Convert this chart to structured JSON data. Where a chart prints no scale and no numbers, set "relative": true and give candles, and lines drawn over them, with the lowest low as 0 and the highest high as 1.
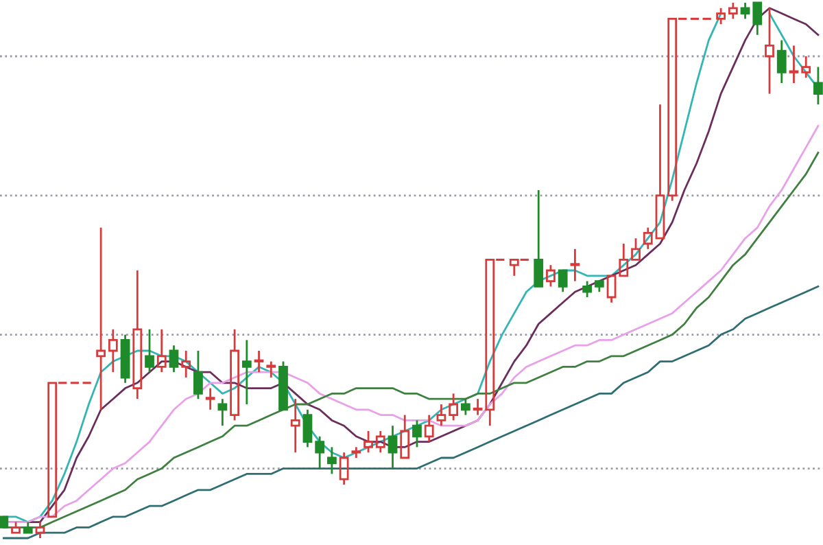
{
  "chart_data": {
    "type": "candlestick",
    "relative": true,
    "categories": [
      null,
      null,
      null,
      null,
      null,
      null,
      null,
      null,
      null,
      null,
      null,
      null,
      null,
      null,
      null,
      null,
      null,
      null,
      null,
      null,
      null,
      null,
      null,
      null,
      null,
      null,
      null,
      null,
      null,
      null,
      null,
      null,
      null,
      null,
      null,
      null,
      null,
      null,
      null,
      null,
      null,
      null,
      null,
      null,
      null,
      null,
      null,
      null,
      null,
      null,
      null,
      null,
      null,
      null,
      null,
      null,
      null,
      null,
      null,
      null,
      null,
      null,
      null,
      null,
      null,
      null,
      null,
      null
    ],
    "ohlc": [
      [
        0.04,
        0.04,
        0.02,
        0.02
      ],
      [
        0.01,
        0.03,
        0.01,
        0.02
      ],
      [
        0.02,
        0.03,
        0.01,
        0.01
      ],
      [
        0.01,
        0.03,
        0,
        0.02
      ],
      [
        0.04,
        0.29,
        0.04,
        0.29
      ],
      [
        0.29,
        0.29,
        0.29,
        0.29
      ],
      [
        0.29,
        0.29,
        0.29,
        0.29
      ],
      [
        0.29,
        0.29,
        0.29,
        0.29
      ],
      [
        0.34,
        0.58,
        0.24,
        0.35
      ],
      [
        0.35,
        0.39,
        0.31,
        0.37
      ],
      [
        0.37,
        0.38,
        0.29,
        0.3
      ],
      [
        0.28,
        0.5,
        0.26,
        0.39
      ],
      [
        0.34,
        0.39,
        0.31,
        0.32
      ],
      [
        0.32,
        0.39,
        0.31,
        0.34
      ],
      [
        0.35,
        0.36,
        0.31,
        0.32
      ],
      [
        0.32,
        0.35,
        0.3,
        0.33
      ],
      [
        0.31,
        0.35,
        0.26,
        0.27
      ],
      [
        0.26,
        0.28,
        0.24,
        0.26
      ],
      [
        0.25,
        0.26,
        0.21,
        0.24
      ],
      [
        0.23,
        0.39,
        0.22,
        0.35
      ],
      [
        0.33,
        0.37,
        0.25,
        0.32
      ],
      [
        0.33,
        0.35,
        0.31,
        0.33
      ],
      [
        0.32,
        0.33,
        0.3,
        0.32
      ],
      [
        0.32,
        0.33,
        0.24,
        0.24
      ],
      [
        0.21,
        0.26,
        0.16,
        0.22
      ],
      [
        0.23,
        0.24,
        0.17,
        0.18
      ],
      [
        0.18,
        0.19,
        0.13,
        0.16
      ],
      [
        0.15,
        0.17,
        0.12,
        0.14
      ],
      [
        0.11,
        0.16,
        0.1,
        0.15
      ],
      [
        0.16,
        0.17,
        0.15,
        0.16
      ],
      [
        0.17,
        0.2,
        0.16,
        0.18
      ],
      [
        0.17,
        0.2,
        0.16,
        0.19
      ],
      [
        0.19,
        0.21,
        0.13,
        0.16
      ],
      [
        0.15,
        0.23,
        0.15,
        0.2
      ],
      [
        0.21,
        0.22,
        0.17,
        0.19
      ],
      [
        0.19,
        0.23,
        0.18,
        0.21
      ],
      [
        0.22,
        0.25,
        0.21,
        0.23
      ],
      [
        0.23,
        0.27,
        0.22,
        0.25
      ],
      [
        0.25,
        0.26,
        0.23,
        0.24
      ],
      [
        0.24,
        0.26,
        0.23,
        0.24
      ],
      [
        0.24,
        0.52,
        0.21,
        0.52
      ],
      [
        0.52,
        0.52,
        0.52,
        0.52
      ],
      [
        0.51,
        0.52,
        0.49,
        0.52
      ],
      [
        0.52,
        0.52,
        0.52,
        0.52
      ],
      [
        0.52,
        0.65,
        0.47,
        0.47
      ],
      [
        0.48,
        0.51,
        0.47,
        0.5
      ],
      [
        0.5,
        0.5,
        0.46,
        0.47
      ],
      [
        0.51,
        0.54,
        0.48,
        0.51
      ],
      [
        0.47,
        0.48,
        0.45,
        0.46
      ],
      [
        0.48,
        0.48,
        0.46,
        0.47
      ],
      [
        0.45,
        0.49,
        0.44,
        0.49
      ],
      [
        0.49,
        0.55,
        0.49,
        0.52
      ],
      [
        0.52,
        0.56,
        0.52,
        0.54
      ],
      [
        0.55,
        0.58,
        0.54,
        0.57
      ],
      [
        0.56,
        0.81,
        0.56,
        0.64
      ],
      [
        0.64,
        0.97,
        0.63,
        0.97
      ],
      [
        0.97,
        0.97,
        0.97,
        0.97
      ],
      [
        0.97,
        0.97,
        0.97,
        0.97
      ],
      [
        0.97,
        0.97,
        0.97,
        0.97
      ],
      [
        0.97,
        0.99,
        0.96,
        0.98
      ],
      [
        0.98,
        1,
        0.97,
        0.99
      ],
      [
        0.99,
        1,
        0.97,
        0.98
      ],
      [
        1,
        1,
        0.94,
        0.96
      ],
      [
        0.9,
        0.99,
        0.83,
        0.92
      ],
      [
        0.91,
        0.93,
        0.85,
        0.87
      ],
      [
        0.87,
        0.92,
        0.85,
        0.87
      ],
      [
        0.87,
        0.9,
        0.86,
        0.88
      ],
      [
        0.85,
        0.88,
        0.81,
        0.83
      ]
    ],
    "series": [
      {
        "type": "line",
        "color": "#33b5b5",
        "values": [
          0.04,
          0.04,
          0.03,
          0.04,
          0.07,
          0.12,
          0.18,
          0.25,
          0.31,
          0.33,
          0.34,
          0.35,
          0.35,
          0.34,
          0.34,
          0.33,
          0.31,
          0.29,
          0.27,
          0.28,
          0.3,
          0.32,
          0.31,
          0.29,
          0.25,
          0.21,
          0.18,
          0.16,
          0.15,
          0.16,
          0.17,
          0.18,
          0.19,
          0.2,
          0.21,
          0.22,
          0.24,
          0.25,
          0.26,
          0.27,
          0.33,
          0.38,
          0.42,
          0.46,
          0.48,
          0.49,
          0.5,
          0.5,
          0.49,
          0.49,
          0.49,
          0.51,
          0.53,
          0.56,
          0.59,
          0.67,
          0.76,
          0.85,
          0.93,
          0.98,
          null,
          null,
          null,
          0.98,
          0.94,
          0.9,
          0.87,
          0.84
        ]
      },
      {
        "type": "line",
        "color": "#6b2d5c",
        "values": [
          0.03,
          0.03,
          0.03,
          0.03,
          0.06,
          0.09,
          0.15,
          0.19,
          0.24,
          0.26,
          0.28,
          0.29,
          0.31,
          0.33,
          0.33,
          0.32,
          0.31,
          0.31,
          0.29,
          0.29,
          0.28,
          0.28,
          0.28,
          0.29,
          0.27,
          0.25,
          0.24,
          0.22,
          0.21,
          0.19,
          0.18,
          0.18,
          0.17,
          0.17,
          0.18,
          0.18,
          0.19,
          0.2,
          0.21,
          0.22,
          0.25,
          0.29,
          0.33,
          0.36,
          0.4,
          0.42,
          0.44,
          0.46,
          0.47,
          0.48,
          0.49,
          0.5,
          0.51,
          0.53,
          0.55,
          0.59,
          0.65,
          0.7,
          0.76,
          0.83,
          0.88,
          0.93,
          0.97,
          0.99,
          0.98,
          0.97,
          0.96,
          0.94
        ]
      },
      {
        "type": "line",
        "color": "#e8a0e8",
        "values": [
          0.03,
          0.03,
          0.03,
          0.04,
          0.04,
          0.06,
          0.07,
          0.09,
          0.11,
          0.13,
          0.14,
          0.16,
          0.18,
          0.21,
          0.24,
          0.26,
          0.27,
          0.29,
          0.29,
          0.3,
          0.31,
          0.31,
          0.31,
          0.31,
          0.3,
          0.29,
          0.27,
          0.26,
          0.25,
          0.24,
          0.24,
          0.23,
          0.23,
          0.22,
          0.22,
          0.22,
          0.21,
          0.21,
          0.21,
          0.22,
          0.25,
          0.27,
          0.3,
          0.32,
          0.33,
          0.34,
          0.35,
          0.36,
          0.36,
          0.37,
          0.37,
          0.38,
          0.39,
          0.4,
          0.41,
          0.42,
          0.44,
          0.46,
          0.48,
          0.5,
          0.53,
          0.56,
          0.58,
          0.62,
          0.65,
          0.69,
          0.73,
          0.77
        ]
      },
      {
        "type": "line",
        "color": "#3f7f3f",
        "values": [
          0.02,
          0.02,
          0.02,
          0.02,
          0.03,
          0.04,
          0.05,
          0.06,
          0.07,
          0.08,
          0.09,
          0.11,
          0.12,
          0.13,
          0.15,
          0.16,
          0.17,
          0.18,
          0.19,
          0.21,
          0.21,
          0.22,
          0.23,
          0.24,
          0.25,
          0.25,
          0.26,
          0.27,
          0.27,
          0.28,
          0.28,
          0.28,
          0.28,
          0.27,
          0.27,
          0.26,
          0.26,
          0.26,
          0.26,
          0.27,
          0.27,
          0.28,
          0.29,
          0.29,
          0.3,
          0.31,
          0.32,
          0.32,
          0.33,
          0.33,
          0.34,
          0.34,
          0.35,
          0.36,
          0.37,
          0.38,
          0.4,
          0.43,
          0.45,
          0.48,
          0.51,
          0.53,
          0.56,
          0.59,
          0.62,
          0.65,
          0.68,
          0.72
        ]
      },
      {
        "type": "line",
        "color": "#2e6e72",
        "values": [
          0,
          0,
          0,
          0.01,
          0.01,
          0.01,
          0.02,
          0.02,
          0.03,
          0.04,
          0.04,
          0.05,
          0.06,
          0.06,
          0.07,
          0.08,
          0.09,
          0.09,
          0.1,
          0.11,
          0.12,
          0.12,
          0.12,
          0.13,
          0.13,
          0.13,
          0.13,
          0.13,
          0.13,
          0.13,
          0.13,
          0.13,
          0.13,
          0.13,
          0.13,
          0.14,
          0.15,
          0.15,
          0.16,
          0.17,
          0.18,
          0.19,
          0.2,
          0.21,
          0.22,
          0.23,
          0.24,
          0.25,
          0.26,
          0.27,
          0.27,
          0.29,
          0.3,
          0.31,
          0.33,
          0.33,
          0.34,
          0.35,
          0.36,
          0.38,
          0.39,
          0.41,
          0.42,
          0.43,
          0.44,
          0.45,
          0.46,
          0.47
        ]
      }
    ],
    "ref_lines": [
      {
        "axis": "y",
        "value": 0.9,
        "color": "#9a9aa8",
        "line_style": "dotted"
      },
      {
        "axis": "y",
        "value": 0.64,
        "color": "#9a9aa8",
        "line_style": "dotted"
      },
      {
        "axis": "y",
        "value": 0.38,
        "color": "#9a9aa8",
        "line_style": "dotted"
      },
      {
        "axis": "y",
        "value": 0.13,
        "color": "#9a9aa8",
        "line_style": "dotted"
      }
    ]
  }
}
